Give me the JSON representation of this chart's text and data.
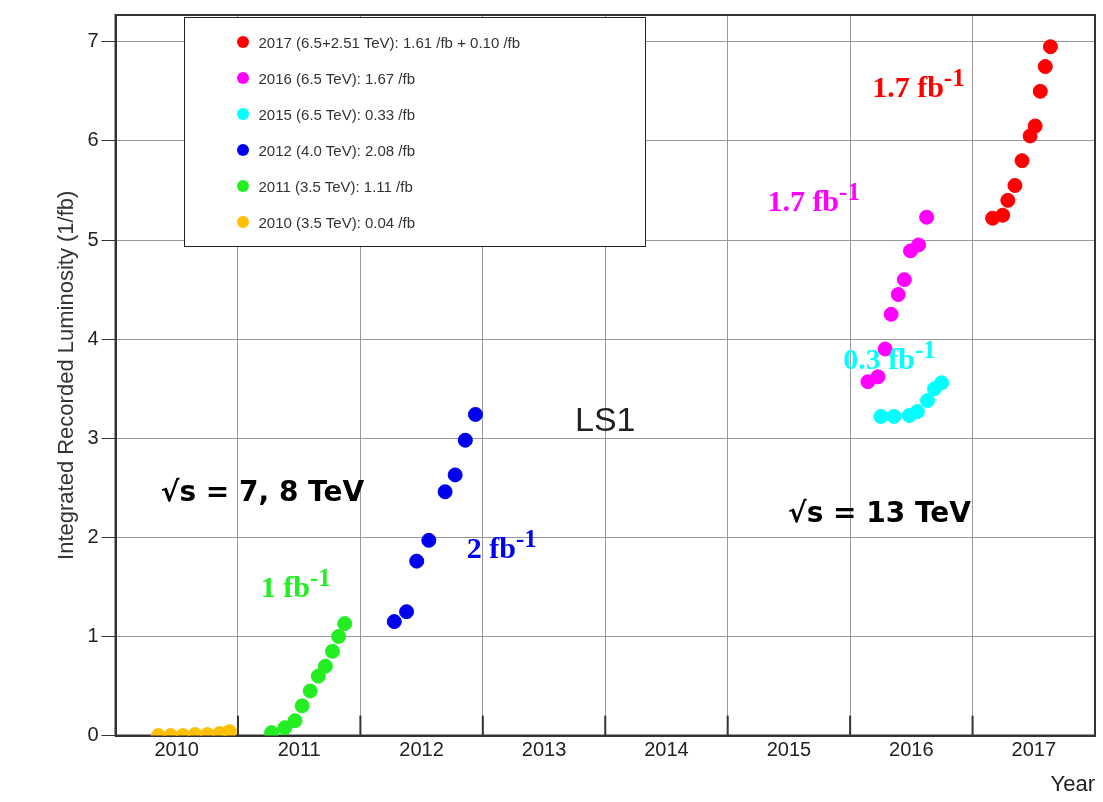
{
  "chart_data": {
    "type": "scatter",
    "xlabel": "Year",
    "ylabel": "Integrated Recorded Luminosity (1/fb)",
    "xlim": [
      2010,
      2018
    ],
    "xticks": [
      {
        "value": 2010.5,
        "label": "2010"
      },
      {
        "value": 2011,
        "label": null
      },
      {
        "value": 2011.5,
        "label": "2011"
      },
      {
        "value": 2012,
        "label": null
      },
      {
        "value": 2012.5,
        "label": "2012"
      },
      {
        "value": 2013,
        "label": null
      },
      {
        "value": 2013.5,
        "label": "2013"
      },
      {
        "value": 2014,
        "label": null
      },
      {
        "value": 2014.5,
        "label": "2014"
      },
      {
        "value": 2015,
        "label": null
      },
      {
        "value": 2015.5,
        "label": "2015"
      },
      {
        "value": 2016,
        "label": null
      },
      {
        "value": 2016.5,
        "label": "2016"
      },
      {
        "value": 2017,
        "label": null
      },
      {
        "value": 2017.5,
        "label": "2017"
      }
    ],
    "ylim": [
      0,
      7.27
    ],
    "yticks": [
      0,
      1,
      2,
      3,
      4,
      5,
      6,
      7
    ],
    "grid": true,
    "legend": "top left",
    "marker": "circle",
    "series": [
      {
        "name": "2017 (6.5+2.51 TeV): 1.61 /fb + 0.10 /fb",
        "color": "#ff0000",
        "x": [
          2017.164,
          2017.246,
          2017.288,
          2017.346,
          2017.404,
          2017.47,
          2017.511,
          2017.553,
          2017.594,
          2017.636
        ],
        "values": [
          5.22,
          5.25,
          5.4,
          5.55,
          5.8,
          6.05,
          6.15,
          6.5,
          6.75,
          6.95
        ]
      },
      {
        "name": "2016 (6.5 TeV): 1.67 /fb",
        "color": "#ff00ff",
        "x": [
          2016.145,
          2016.228,
          2016.286,
          2016.335,
          2016.393,
          2016.443,
          2016.493,
          2016.559,
          2016.625
        ],
        "values": [
          3.57,
          3.62,
          3.9,
          4.25,
          4.45,
          4.6,
          4.89,
          4.95,
          5.23
        ]
      },
      {
        "name": "2015 (6.5 TeV): 0.33 /fb",
        "color": "#00ffff",
        "x": [
          2016.251,
          2016.358,
          2016.483,
          2016.549,
          2016.632,
          2016.689,
          2016.747
        ],
        "values": [
          3.22,
          3.22,
          3.23,
          3.27,
          3.38,
          3.5,
          3.56
        ]
      },
      {
        "name": "2012 (4.0 TeV): 2.08 /fb",
        "color": "#0000ee",
        "x": [
          2012.277,
          2012.377,
          2012.46,
          2012.559,
          2012.692,
          2012.774,
          2012.857,
          2012.94
        ],
        "values": [
          1.15,
          1.25,
          1.76,
          1.97,
          2.46,
          2.63,
          2.98,
          3.24
        ]
      },
      {
        "name": "2011 (3.5 TeV): 1.11 /fb",
        "color": "#22ee22",
        "x": [
          2011.275,
          2011.383,
          2011.466,
          2011.524,
          2011.59,
          2011.656,
          2011.714,
          2011.772,
          2011.822,
          2011.872
        ],
        "values": [
          0.03,
          0.08,
          0.15,
          0.3,
          0.45,
          0.6,
          0.7,
          0.85,
          1.0,
          1.13
        ]
      },
      {
        "name": "2010 (3.5 TeV): 0.04 /fb",
        "color": "#ffc000",
        "x": [
          2010.35,
          2010.45,
          2010.55,
          2010.65,
          2010.75,
          2010.85,
          2010.93
        ],
        "values": [
          0,
          0,
          0,
          0.01,
          0.01,
          0.02,
          0.04
        ]
      }
    ],
    "annotations": [
      {
        "text": "1.7 fb$^{-1}$",
        "x": 2017.636,
        "y": 6.95
      },
      {
        "text": "1.7 fb$^{-1}$",
        "x": 2016.625,
        "y": 5.23
      },
      {
        "text": "0.3 fb$^{-1}$",
        "x": 2016.747,
        "y": 3.56
      },
      {
        "text": "2 fb$^{-1}$",
        "x": 2012.559,
        "y": 1.97
      },
      {
        "text": "1 fb$^{-1}$",
        "x": 2011.872,
        "y": 1.13
      },
      "LS1",
      "√s = 7, 8 TeV",
      "√s = 13 TeV"
    ]
  }
}
